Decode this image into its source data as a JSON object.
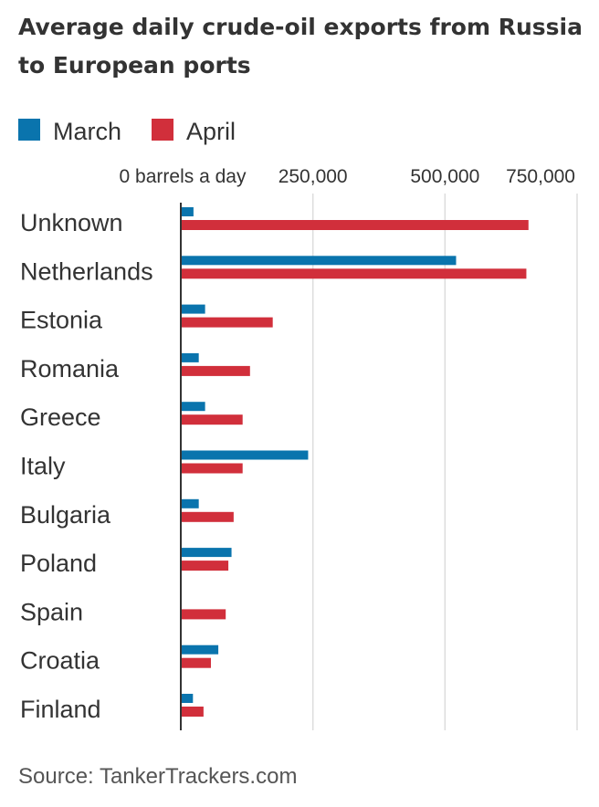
{
  "chart_data": {
    "type": "bar",
    "orientation": "horizontal",
    "title_lines": [
      "Average daily crude-oil exports from Russia",
      "to European ports"
    ],
    "categories": [
      "Unknown",
      "Netherlands",
      "Estonia",
      "Romania",
      "Greece",
      "Italy",
      "Bulgaria",
      "Poland",
      "Spain",
      "Croatia",
      "Finland"
    ],
    "series": [
      {
        "name": "March",
        "color": "#0a74ad",
        "values": [
          24000,
          521000,
          46000,
          34000,
          46000,
          241000,
          34000,
          96000,
          0,
          71000,
          23000
        ]
      },
      {
        "name": "April",
        "color": "#d12f3b",
        "values": [
          658000,
          654000,
          174000,
          131000,
          117000,
          117000,
          100000,
          90000,
          85000,
          57000,
          43000
        ]
      }
    ],
    "xlim": [
      0,
      750000
    ],
    "xticks": [
      0,
      250000,
      500000,
      750000
    ],
    "xtick_labels": [
      "0 barrels a day",
      "250,000",
      "500,000",
      "750,000"
    ],
    "grid": true,
    "legend_position": "top-left",
    "source": "Source: TankerTrackers.com"
  }
}
